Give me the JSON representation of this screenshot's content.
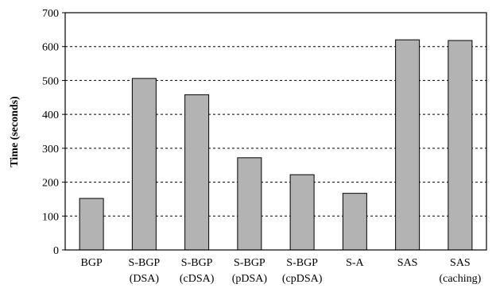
{
  "chart_data": {
    "type": "bar",
    "title": "",
    "xlabel": "",
    "ylabel": "Time (seconds)",
    "ylim": [
      0,
      700
    ],
    "yticks": [
      0,
      100,
      200,
      300,
      400,
      500,
      600,
      700
    ],
    "grid": "horizontal-dashed",
    "bar_color": "#b3b3b3",
    "categories": [
      [
        "BGP"
      ],
      [
        "S-BGP",
        "(DSA)"
      ],
      [
        "S-BGP",
        "(cDSA)"
      ],
      [
        "S-BGP",
        "(pDSA)"
      ],
      [
        "S-BGP",
        "(cpDSA)"
      ],
      [
        "S-A"
      ],
      [
        "SAS"
      ],
      [
        "SAS",
        "(caching)"
      ]
    ],
    "values": [
      152,
      506,
      458,
      272,
      222,
      167,
      620,
      618
    ]
  }
}
